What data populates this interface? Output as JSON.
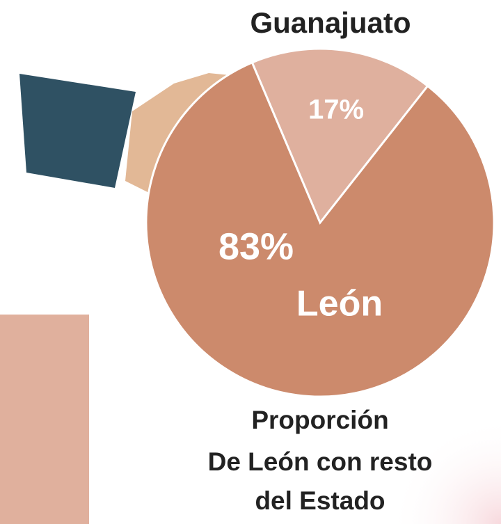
{
  "chart_data": {
    "type": "pie",
    "title": "Guanajuato",
    "categories": [
      null,
      "León"
    ],
    "values": [
      17,
      83
    ],
    "value_labels": [
      "17%",
      "83%"
    ],
    "colors": [
      "#dfb09e",
      "#cc8a6c"
    ],
    "caption": [
      "Proporción",
      "De León con resto",
      "del Estado"
    ]
  }
}
